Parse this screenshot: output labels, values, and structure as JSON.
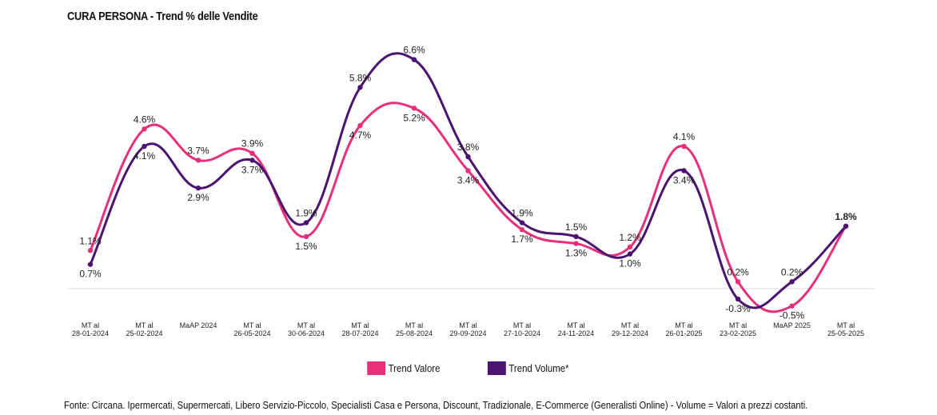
{
  "title": "CURA PERSONA - Trend % delle Vendite",
  "footnote": "Fonte: Circana. Ipermercati, Supermercati, Libero Servizio-Piccolo, Specialisti Casa e Persona, Discount, Tradizionale, E-Commerce (Generalisti Online) - Volume = Valori a prezzi costanti.",
  "colors": {
    "trend_valore": "#e8307a",
    "trend_volume": "#4b1470",
    "baseline": "#dddddd"
  },
  "chart_data": {
    "type": "line",
    "categories": [
      [
        "MT al",
        "28-01-2024"
      ],
      [
        "MT al",
        "25-02-2024"
      ],
      [
        "MaAP 2024"
      ],
      [
        "MT al",
        "26-05-2024"
      ],
      [
        "MT al",
        "30-06-2024"
      ],
      [
        "MT al",
        "28-07-2024"
      ],
      [
        "MT al",
        "25-08-2024"
      ],
      [
        "MT al",
        "29-09-2024"
      ],
      [
        "MT al",
        "27-10-2024"
      ],
      [
        "MT al",
        "24-11-2024"
      ],
      [
        "MT al",
        "29-12-2024"
      ],
      [
        "MT al",
        "26-01-2025"
      ],
      [
        "MT al",
        "23-02-2025"
      ],
      [
        "MaAP 2025"
      ],
      [
        "MT al",
        "25-05-2025"
      ]
    ],
    "series": [
      {
        "name": "Trend Valore",
        "values": [
          1.1,
          4.6,
          3.7,
          3.9,
          1.5,
          4.7,
          5.2,
          3.4,
          1.7,
          1.3,
          1.2,
          4.1,
          0.2,
          -0.5,
          1.8
        ],
        "labels": [
          "1.1%",
          "4.6%",
          "3.7%",
          "3.9%",
          "1.5%",
          "4.7%",
          "5.2%",
          "3.4%",
          "1.7%",
          "1.3%",
          "1.2%",
          "4.1%",
          "0.2%",
          "-0.5%",
          "1.8%"
        ]
      },
      {
        "name": "Trend Volume*",
        "values": [
          0.7,
          4.1,
          2.9,
          3.7,
          1.9,
          5.8,
          6.6,
          3.8,
          1.9,
          1.5,
          1.0,
          3.4,
          -0.3,
          0.2,
          1.8
        ],
        "labels": [
          "0.7%",
          "4.1%",
          "2.9%",
          "3.7%",
          "1.9%",
          "5.8%",
          "6.6%",
          "3.8%",
          "1.9%",
          "1.5%",
          "1.0%",
          "3.4%",
          "-0.3%",
          "0.2%",
          "1.8%"
        ]
      }
    ],
    "legend_position": "bottom",
    "grid": false
  }
}
